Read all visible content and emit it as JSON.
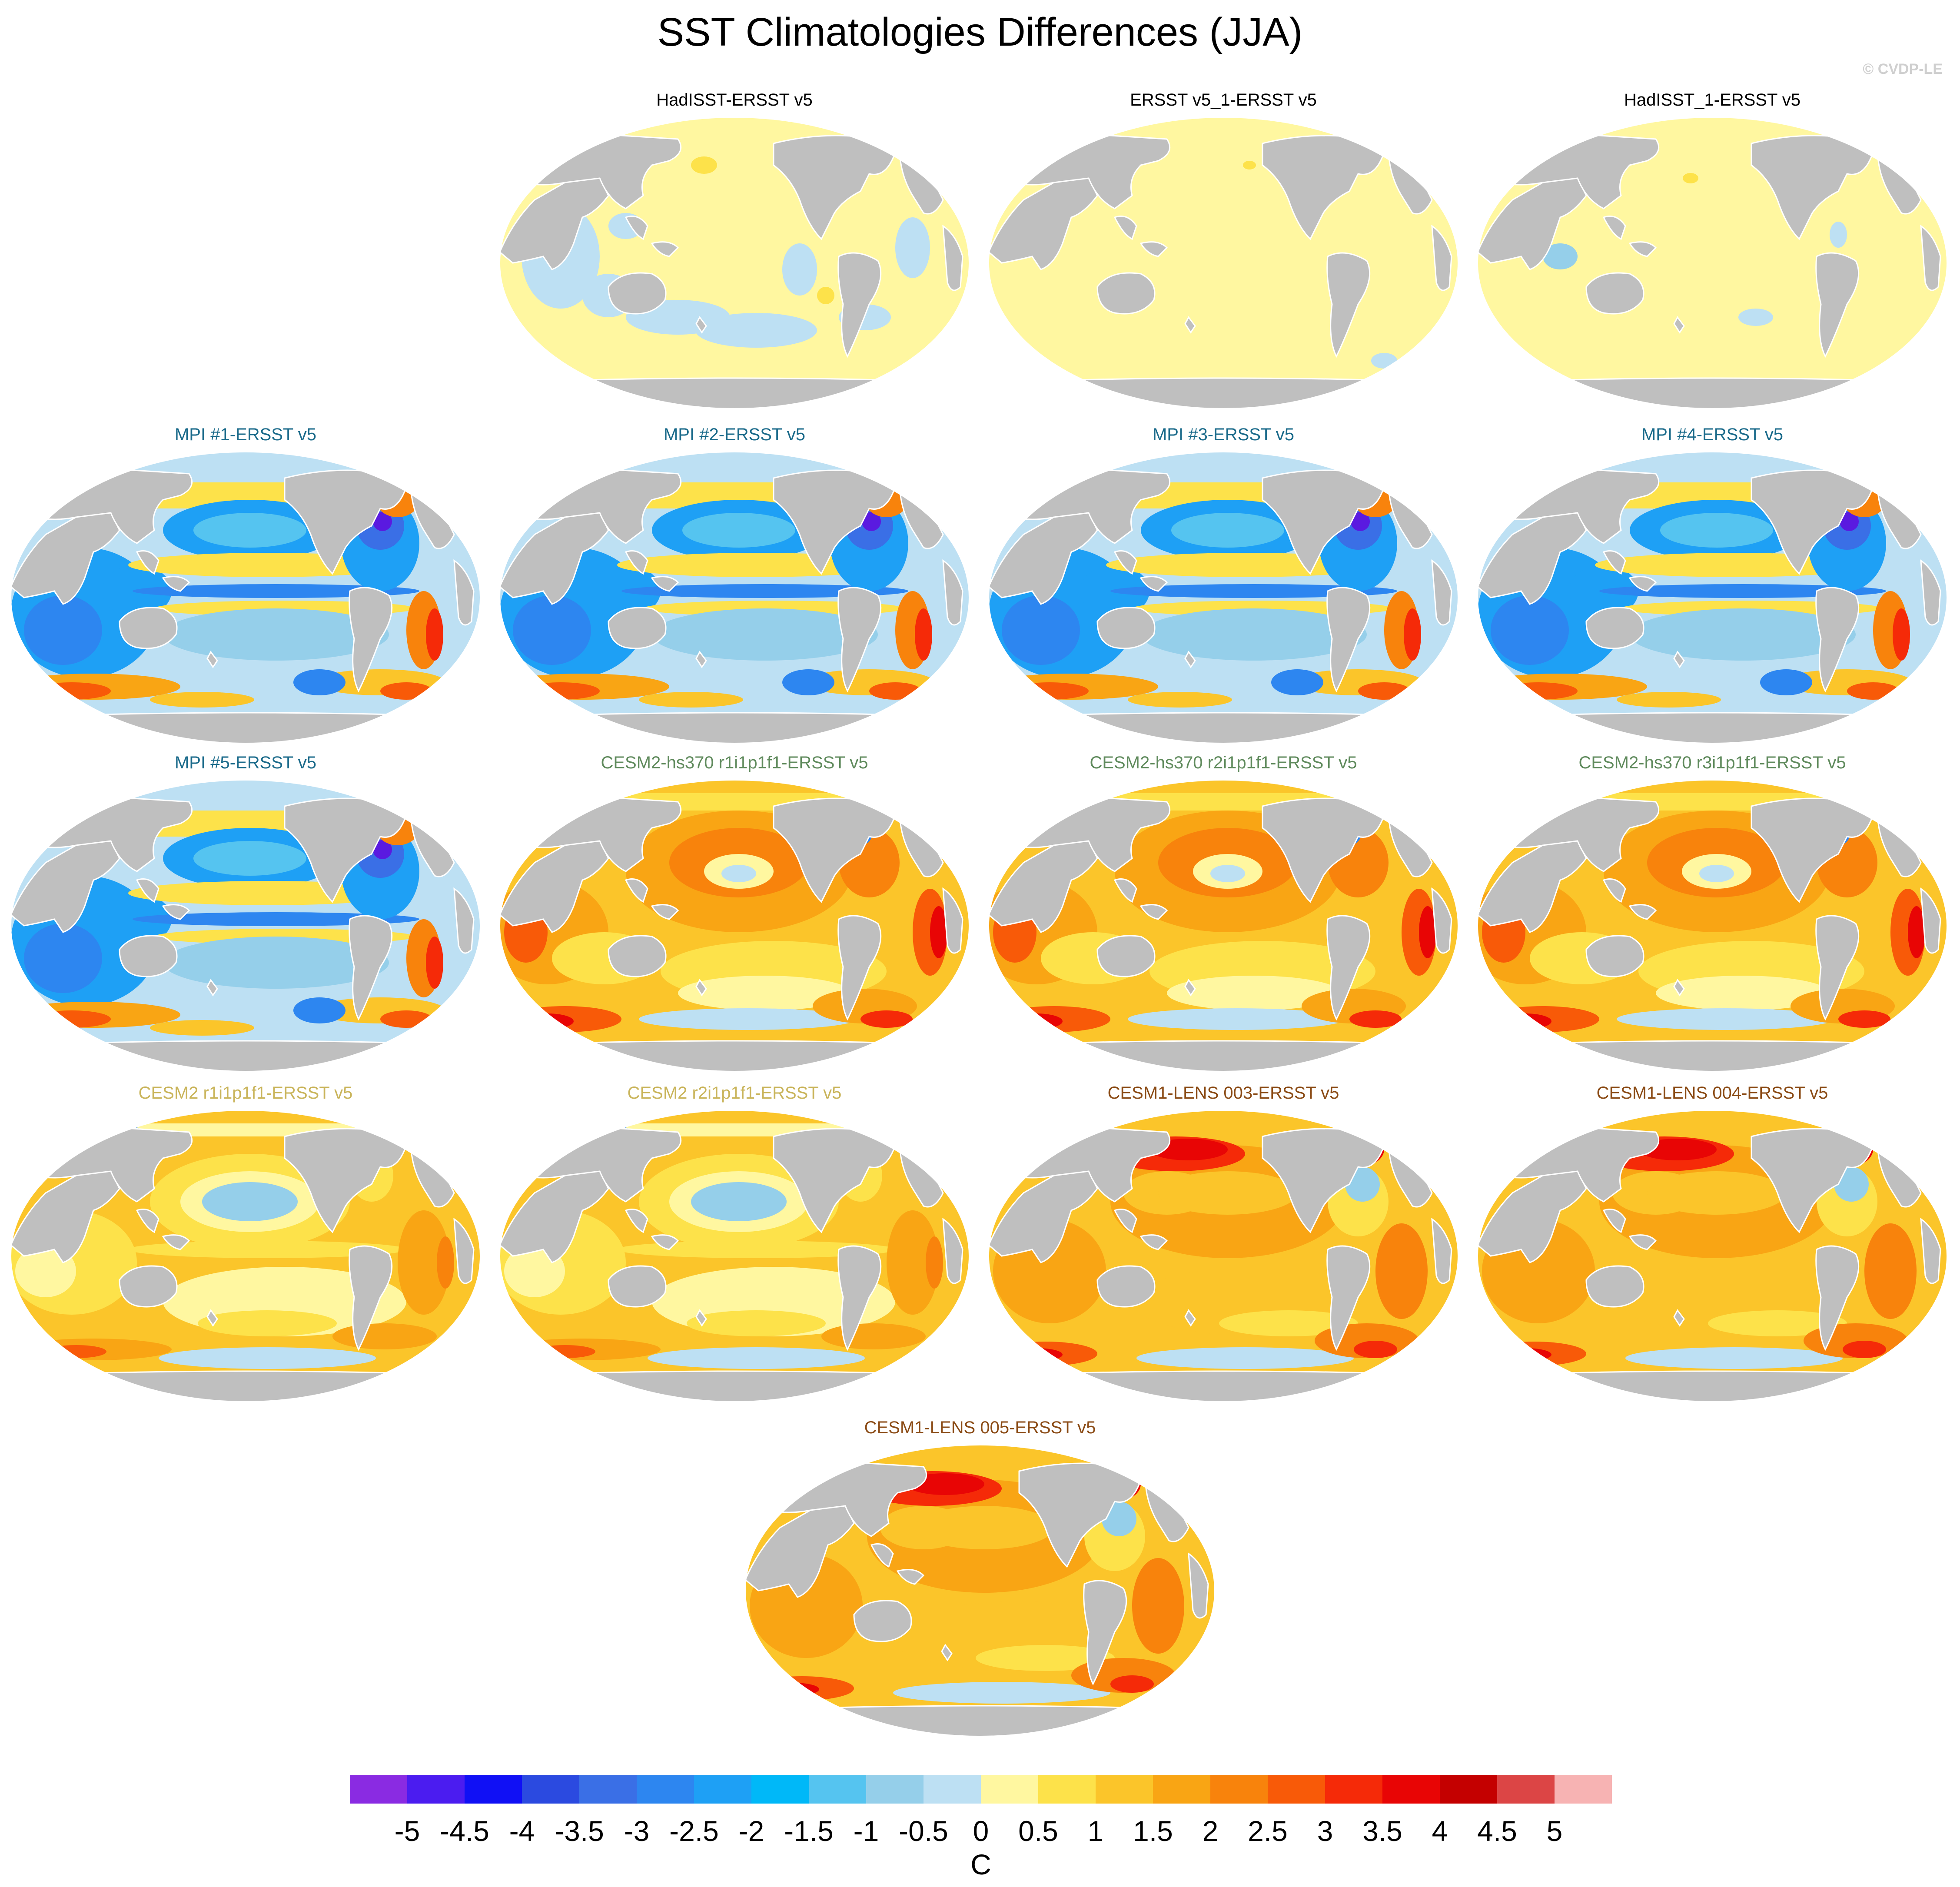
{
  "title": "SST Climatologies Differences (JJA)",
  "watermark": "© CVDP-LE",
  "colorbar": {
    "units": "C",
    "ticks": [
      "-5",
      "-4.5",
      "-4",
      "-3.5",
      "-3",
      "-2.5",
      "-2",
      "-1.5",
      "-1",
      "-0.5",
      "0",
      "0.5",
      "1",
      "1.5",
      "2",
      "2.5",
      "3",
      "3.5",
      "4",
      "4.5",
      "5"
    ],
    "colors": [
      "#8a2be2",
      "#4b1cf0",
      "#1010f5",
      "#2b4ae0",
      "#3a6fe6",
      "#2d86f0",
      "#1ea0f5",
      "#00b8f8",
      "#55c4f0",
      "#95cfea",
      "#bde0f3",
      "#fff7a0",
      "#fde24a",
      "#fbc52a",
      "#f9a514",
      "#f8830c",
      "#f85a08",
      "#f52a08",
      "#e80505",
      "#c40000",
      "#dc4545",
      "#f7b3b3"
    ]
  },
  "panels": [
    {
      "title": "HadISST-ERSST v5",
      "title_color": "#000000",
      "pattern": "obs-a"
    },
    {
      "title": "ERSST v5_1-ERSST v5",
      "title_color": "#000000",
      "pattern": "obs-b"
    },
    {
      "title": "HadISST_1-ERSST v5",
      "title_color": "#000000",
      "pattern": "obs-c"
    },
    {
      "title": "MPI #1-ERSST v5",
      "title_color": "#1a6a8a",
      "pattern": "mpi"
    },
    {
      "title": "MPI #2-ERSST v5",
      "title_color": "#1a6a8a",
      "pattern": "mpi"
    },
    {
      "title": "MPI #3-ERSST v5",
      "title_color": "#1a6a8a",
      "pattern": "mpi"
    },
    {
      "title": "MPI #4-ERSST v5",
      "title_color": "#1a6a8a",
      "pattern": "mpi"
    },
    {
      "title": "MPI #5-ERSST v5",
      "title_color": "#1a6a8a",
      "pattern": "mpi"
    },
    {
      "title": "CESM2-hs370 r1i1p1f1-ERSST v5",
      "title_color": "#5f8a5c",
      "pattern": "hs370"
    },
    {
      "title": "CESM2-hs370 r2i1p1f1-ERSST v5",
      "title_color": "#5f8a5c",
      "pattern": "hs370"
    },
    {
      "title": "CESM2-hs370 r3i1p1f1-ERSST v5",
      "title_color": "#5f8a5c",
      "pattern": "hs370"
    },
    {
      "title": "CESM2 r1i1p1f1-ERSST v5",
      "title_color": "#c9b45a",
      "pattern": "cesm2"
    },
    {
      "title": "CESM2 r2i1p1f1-ERSST v5",
      "title_color": "#c9b45a",
      "pattern": "cesm2"
    },
    {
      "title": "CESM1-LENS 003-ERSST v5",
      "title_color": "#8a4a14",
      "pattern": "lens"
    },
    {
      "title": "CESM1-LENS 004-ERSST v5",
      "title_color": "#8a4a14",
      "pattern": "lens"
    },
    {
      "title": "CESM1-LENS 005-ERSST v5",
      "title_color": "#8a4a14",
      "pattern": "lens"
    }
  ]
}
